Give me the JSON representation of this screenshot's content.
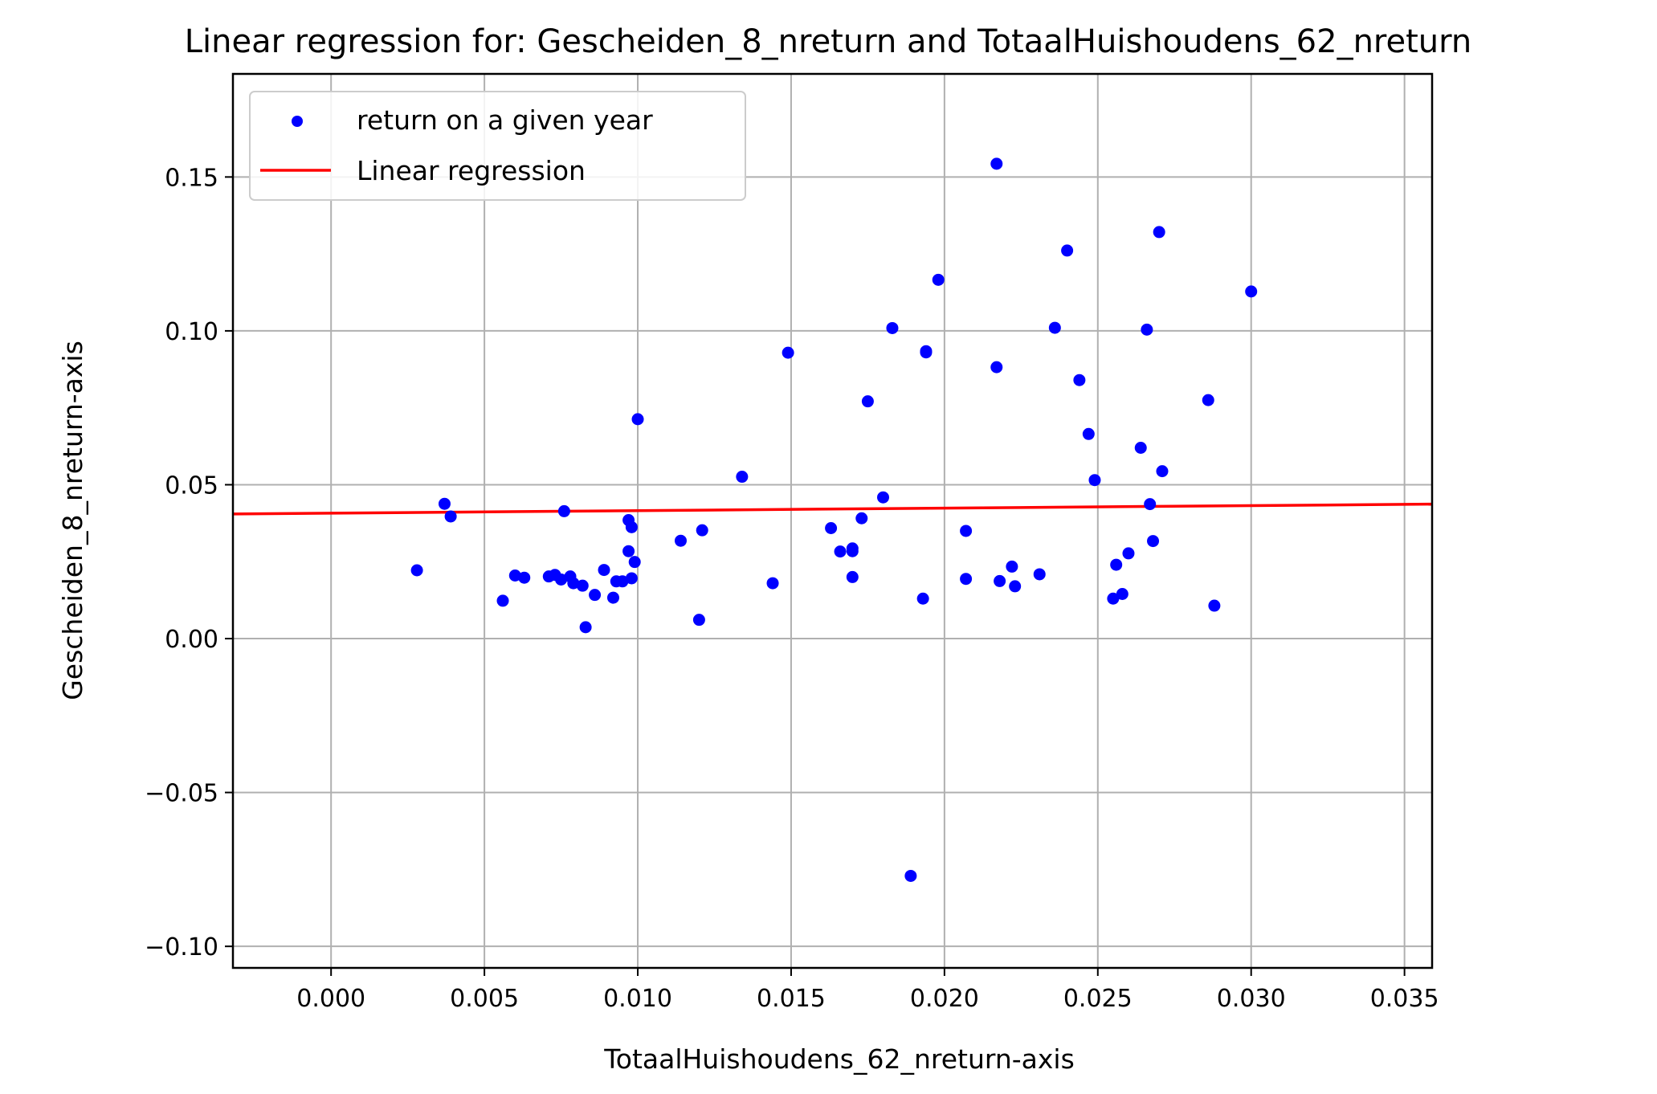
{
  "chart_data": {
    "type": "scatter",
    "title": "Linear regression for: Gescheiden_8_nreturn and TotaalHuishoudens_62_nreturn",
    "xlabel": "TotaalHuishoudens_62_nreturn-axis",
    "ylabel": "Gescheiden_8_nreturn-axis",
    "xlim": [
      -0.0032,
      0.0359
    ],
    "ylim": [
      -0.107,
      0.1835
    ],
    "xticks": [
      0.0,
      0.005,
      0.01,
      0.015,
      0.02,
      0.025,
      0.03,
      0.035
    ],
    "xtick_labels": [
      "0.000",
      "0.005",
      "0.010",
      "0.015",
      "0.020",
      "0.025",
      "0.030",
      "0.035"
    ],
    "yticks": [
      -0.1,
      -0.05,
      0.0,
      0.05,
      0.1,
      0.15
    ],
    "ytick_labels": [
      "−0.10",
      "−0.05",
      "0.00",
      "0.05",
      "0.10",
      "0.15"
    ],
    "grid": true,
    "legend_position": "top-left",
    "series": [
      {
        "name": "return on a given year",
        "kind": "scatter",
        "color": "#0000ff",
        "x": [
          0.0028,
          0.0037,
          0.0039,
          0.0056,
          0.006,
          0.0063,
          0.0071,
          0.0073,
          0.0075,
          0.0076,
          0.0078,
          0.0079,
          0.0082,
          0.0083,
          0.0086,
          0.0089,
          0.0092,
          0.0093,
          0.0095,
          0.0097,
          0.0097,
          0.0098,
          0.0098,
          0.0099,
          0.01,
          0.0114,
          0.012,
          0.0121,
          0.0134,
          0.0144,
          0.0149,
          0.0163,
          0.0166,
          0.017,
          0.017,
          0.017,
          0.0173,
          0.0175,
          0.018,
          0.0183,
          0.0189,
          0.0193,
          0.0194,
          0.0194,
          0.0198,
          0.0207,
          0.0207,
          0.0217,
          0.0217,
          0.0218,
          0.0222,
          0.0223,
          0.0231,
          0.0236,
          0.024,
          0.0244,
          0.0247,
          0.0249,
          0.0255,
          0.0256,
          0.0258,
          0.026,
          0.0264,
          0.0266,
          0.0267,
          0.0268,
          0.027,
          0.0271,
          0.0286,
          0.0288,
          0.03
        ],
        "y": [
          0.0222,
          0.0438,
          0.0397,
          0.0123,
          0.0205,
          0.0198,
          0.0202,
          0.0207,
          0.0192,
          0.0414,
          0.0202,
          0.018,
          0.0172,
          0.0037,
          0.0142,
          0.0223,
          0.0133,
          0.0186,
          0.0186,
          0.0385,
          0.0284,
          0.0362,
          0.0196,
          0.0249,
          0.0713,
          0.0318,
          0.0061,
          0.0352,
          0.0526,
          0.018,
          0.0929,
          0.0359,
          0.0283,
          0.0293,
          0.0284,
          0.02,
          0.0391,
          0.0771,
          0.0459,
          0.1009,
          -0.0771,
          0.013,
          0.0934,
          0.093,
          0.1166,
          0.035,
          0.0194,
          0.0882,
          0.1543,
          0.0187,
          0.0234,
          0.017,
          0.0209,
          0.101,
          0.1261,
          0.084,
          0.0665,
          0.0515,
          0.013,
          0.024,
          0.0145,
          0.0277,
          0.062,
          0.1004,
          0.0437,
          0.0317,
          0.1321,
          0.0544,
          0.0775,
          0.0107,
          0.1128
        ]
      },
      {
        "name": "Linear regression",
        "kind": "line",
        "color": "#ff0000",
        "x": [
          -0.0032,
          0.0359
        ],
        "y": [
          0.0405,
          0.0437
        ]
      }
    ]
  }
}
